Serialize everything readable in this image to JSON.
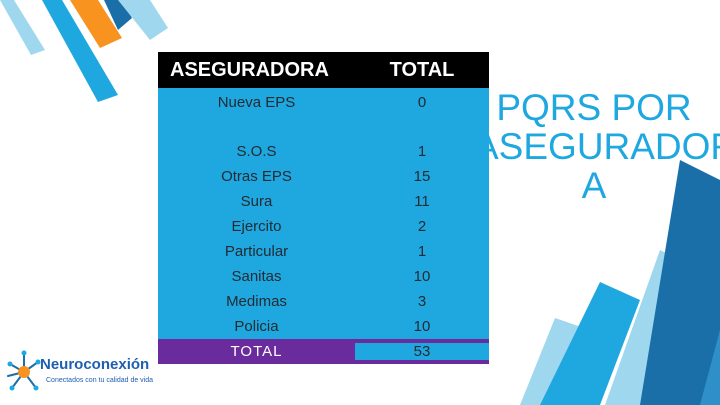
{
  "table": {
    "header": {
      "col1": "ASEGURADORA",
      "col2": "TOTAL"
    },
    "rows": [
      {
        "name": "Nueva EPS",
        "total": "0"
      },
      {
        "name": "S.O.S",
        "total": "1"
      },
      {
        "name": "Otras EPS",
        "total": "15"
      },
      {
        "name": "Sura",
        "total": "11"
      },
      {
        "name": "Ejercito",
        "total": "2"
      },
      {
        "name": "Particular",
        "total": "1"
      },
      {
        "name": "Sanitas",
        "total": "10"
      },
      {
        "name": "Medimas",
        "total": "3"
      },
      {
        "name": "Policia",
        "total": "10"
      }
    ],
    "total_row": {
      "name": "TOTAL",
      "total": "53"
    }
  },
  "slide_title": "PQRS POR ASEGURADOR A",
  "logo": {
    "name": "Neuroconexión",
    "tagline": "Conectados con tu calidad de vida"
  },
  "colors": {
    "accent_blue": "#1fa8e0",
    "header_black": "#000000",
    "total_purple": "#6a2c9c",
    "orange": "#f7931e"
  }
}
